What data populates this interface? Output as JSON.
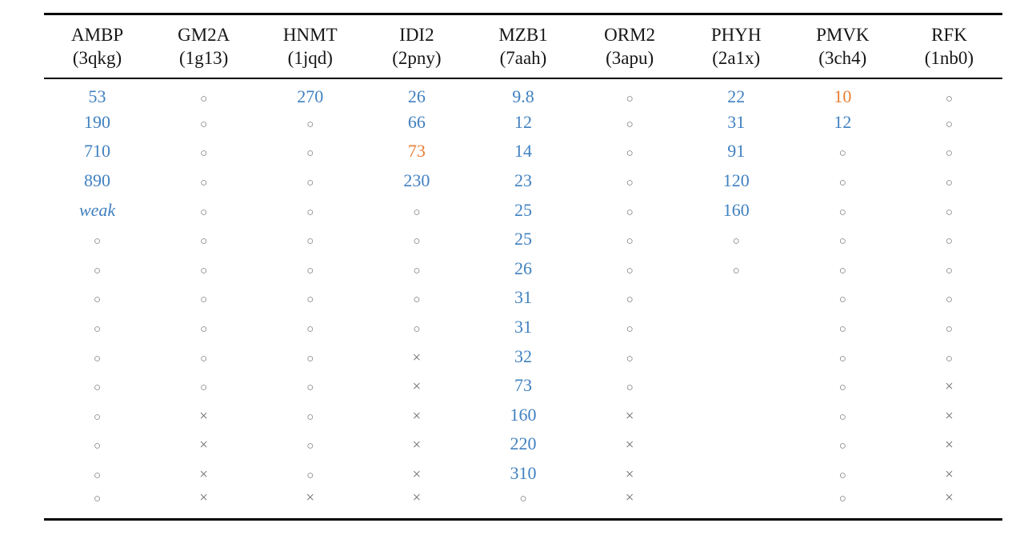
{
  "page": {
    "background": "#ffffff"
  },
  "colors": {
    "value_blue": "#4181c0",
    "highlight_orange": "#e87e33",
    "marker_gray": "#6f6f6f",
    "header_black": "#161616"
  },
  "markers": {
    "circle": "○",
    "cross": "×",
    "empty": ""
  },
  "table": {
    "columns": [
      {
        "name": "AMBP",
        "code": "(3qkg)"
      },
      {
        "name": "GM2A",
        "code": "(1g13)"
      },
      {
        "name": "HNMT",
        "code": "(1jqd)"
      },
      {
        "name": "IDI2",
        "code": "(2pny)"
      },
      {
        "name": "MZB1",
        "code": "(7aah)"
      },
      {
        "name": "ORM2",
        "code": "(3apu)"
      },
      {
        "name": "PHYH",
        "code": "(2a1x)"
      },
      {
        "name": "PMVK",
        "code": "(3ch4)"
      },
      {
        "name": "RFK",
        "code": "(1nb0)"
      }
    ],
    "rows": [
      [
        "53",
        "○",
        "270",
        "26",
        "9.8",
        "○",
        "22",
        "10",
        "○"
      ],
      [
        "190",
        "○",
        "○",
        "66",
        "12",
        "○",
        "31",
        "12",
        "○"
      ],
      [
        "710",
        "○",
        "○",
        "73",
        "14",
        "○",
        "91",
        "○",
        "○"
      ],
      [
        "890",
        "○",
        "○",
        "230",
        "23",
        "○",
        "120",
        "○",
        "○"
      ],
      [
        "weak",
        "○",
        "○",
        "○",
        "25",
        "○",
        "160",
        "○",
        "○"
      ],
      [
        "○",
        "○",
        "○",
        "○",
        "25",
        "○",
        "○",
        "○",
        "○"
      ],
      [
        "○",
        "○",
        "○",
        "○",
        "26",
        "○",
        "○",
        "○",
        "○"
      ],
      [
        "○",
        "○",
        "○",
        "○",
        "31",
        "○",
        "",
        "○",
        "○"
      ],
      [
        "○",
        "○",
        "○",
        "○",
        "31",
        "○",
        "",
        "○",
        "○"
      ],
      [
        "○",
        "○",
        "○",
        "×",
        "32",
        "○",
        "",
        "○",
        "○"
      ],
      [
        "○",
        "○",
        "○",
        "×",
        "73",
        "○",
        "",
        "○",
        "×"
      ],
      [
        "○",
        "×",
        "○",
        "×",
        "160",
        "×",
        "",
        "○",
        "×"
      ],
      [
        "○",
        "×",
        "○",
        "×",
        "220",
        "×",
        "",
        "○",
        "×"
      ],
      [
        "○",
        "×",
        "○",
        "×",
        "310",
        "×",
        "",
        "○",
        "×"
      ],
      [
        "○",
        "×",
        "×",
        "×",
        "○",
        "×",
        "",
        "○",
        "×"
      ]
    ],
    "highlight_cells": [
      [
        0,
        7
      ],
      [
        2,
        3
      ]
    ],
    "italic_cells": [
      [
        4,
        0
      ]
    ]
  }
}
